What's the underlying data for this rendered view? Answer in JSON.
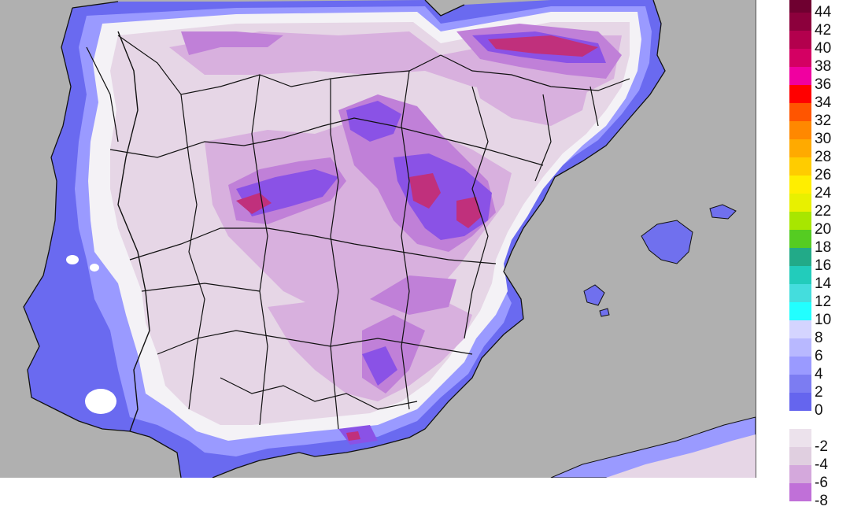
{
  "legend": {
    "colors": {
      "c44": "#6f0030",
      "c42": "#8c003c",
      "c40": "#b3004d",
      "c38": "#d40063",
      "c36": "#f000a0",
      "c34": "#ff0000",
      "c32": "#ff5500",
      "c30": "#ff8800",
      "c28": "#ffaa00",
      "c26": "#ffcc00",
      "c24": "#ffee00",
      "c22": "#e8f000",
      "c20": "#a8e600",
      "c18": "#55cc22",
      "c16": "#22aa88",
      "c14": "#22ccbb",
      "c12": "#44dddd",
      "c10": "#22ffff",
      "c8": "#d4d4ff",
      "c6": "#b8b8ff",
      "c4": "#9a9aff",
      "c2": "#7c7cf2",
      "c0": "#6565ee",
      "blank": "#ffffff",
      "m2": "#ece2ec",
      "m4": "#e0cfe0",
      "m6": "#d4a8dc",
      "m8": "#c070d8"
    },
    "labels": [
      "44",
      "42",
      "40",
      "38",
      "36",
      "34",
      "32",
      "30",
      "28",
      "26",
      "24",
      "22",
      "20",
      "18",
      "16",
      "14",
      "12",
      "10",
      "8",
      "6",
      "4",
      "2",
      "0",
      "-2",
      "-4",
      "-6",
      "-8"
    ]
  },
  "map": {
    "colors": {
      "sea": "#b0b0b0",
      "coastal_blue": "#6a6af0",
      "light_blue": "#9a9aff",
      "white": "#f4f2f6",
      "pale_pink": "#e6d6e6",
      "light_purple": "#d8b0de",
      "purple": "#c080d8",
      "violet": "#8a52e6",
      "magenta": "#c0307c",
      "borders": "#111111"
    }
  }
}
